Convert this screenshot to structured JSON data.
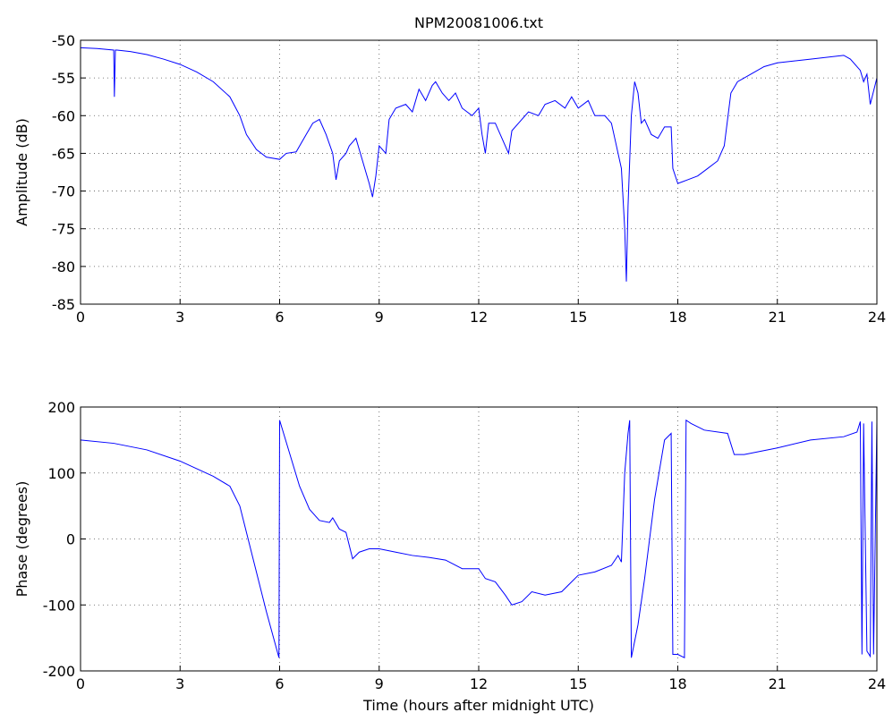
{
  "chart_data": [
    {
      "type": "line",
      "title": "NPM20081006.txt",
      "y_label": "Amplitude (dB)",
      "color": "#0000ff",
      "grid": true,
      "xlim": [
        0,
        24
      ],
      "xticks": [
        0,
        3,
        6,
        9,
        12,
        15,
        18,
        21,
        24
      ],
      "ylim": [
        -85,
        -50
      ],
      "yticks": [
        -85,
        -80,
        -75,
        -70,
        -65,
        -60,
        -55,
        -50
      ],
      "x": [
        0,
        0.5,
        1.0,
        1.02,
        1.05,
        1.1,
        1.5,
        2,
        2.5,
        3,
        3.5,
        4,
        4.5,
        4.8,
        5.0,
        5.3,
        5.6,
        6,
        6.2,
        6.5,
        6.8,
        7.0,
        7.2,
        7.4,
        7.6,
        7.7,
        7.8,
        8.0,
        8.1,
        8.3,
        8.5,
        8.7,
        8.8,
        8.9,
        9.0,
        9.2,
        9.3,
        9.5,
        9.8,
        10.0,
        10.2,
        10.4,
        10.6,
        10.7,
        10.9,
        11.1,
        11.3,
        11.5,
        11.8,
        12.0,
        12.1,
        12.2,
        12.3,
        12.5,
        12.7,
        12.9,
        13.0,
        13.2,
        13.5,
        13.8,
        14.0,
        14.3,
        14.6,
        14.8,
        15.0,
        15.3,
        15.5,
        15.8,
        16.0,
        16.1,
        16.3,
        16.4,
        16.45,
        16.5,
        16.6,
        16.7,
        16.8,
        16.9,
        17.0,
        17.2,
        17.4,
        17.6,
        17.8,
        17.85,
        18.0,
        18.3,
        18.6,
        18.9,
        19.2,
        19.4,
        19.6,
        19.8,
        20.2,
        20.6,
        21,
        22,
        23,
        23.2,
        23.5,
        23.6,
        23.7,
        23.8,
        24
      ],
      "values": [
        -51,
        -51.1,
        -51.3,
        -57.5,
        -51.3,
        -51.3,
        -51.5,
        -51.9,
        -52.5,
        -53.2,
        -54.2,
        -55.5,
        -57.5,
        -60,
        -62.5,
        -64.5,
        -65.5,
        -65.8,
        -65,
        -64.8,
        -62.5,
        -61,
        -60.5,
        -62.5,
        -65,
        -68.5,
        -66,
        -65,
        -64,
        -63,
        -66,
        -69,
        -70.8,
        -68,
        -64,
        -65,
        -60.5,
        -59,
        -58.5,
        -59.5,
        -56.5,
        -58,
        -56,
        -55.5,
        -57,
        -58,
        -57,
        -59,
        -60,
        -59,
        -62.5,
        -65,
        -61,
        -61,
        -63,
        -65,
        -62,
        -61,
        -59.5,
        -60,
        -58.5,
        -58,
        -59,
        -57.5,
        -59,
        -58,
        -60,
        -60,
        -61,
        -63,
        -67,
        -75,
        -82,
        -72,
        -60,
        -55.5,
        -57,
        -61,
        -60.5,
        -62.5,
        -63,
        -61.5,
        -61.5,
        -67,
        -69,
        -68.5,
        -68,
        -67,
        -66,
        -64,
        -57,
        -55.5,
        -54.5,
        -53.5,
        -53,
        -52.5,
        -52,
        -52.5,
        -54,
        -55.5,
        -54.5,
        -58.5,
        -55
      ]
    },
    {
      "type": "line",
      "y_label": "Phase (degrees)",
      "x_label": "Time (hours after midnight UTC)",
      "color": "#0000ff",
      "grid": true,
      "xlim": [
        0,
        24
      ],
      "xticks": [
        0,
        3,
        6,
        9,
        12,
        15,
        18,
        21,
        24
      ],
      "ylim": [
        -200,
        200
      ],
      "yticks": [
        -200,
        -100,
        0,
        100,
        200
      ],
      "x": [
        0,
        1,
        2,
        3,
        4,
        4.5,
        4.8,
        5.0,
        5.3,
        5.6,
        5.98,
        6.0,
        6.3,
        6.6,
        6.9,
        7.2,
        7.5,
        7.6,
        7.8,
        8.0,
        8.2,
        8.4,
        8.7,
        9.0,
        9.5,
        10,
        10.5,
        11,
        11.5,
        12.0,
        12.2,
        12.5,
        12.8,
        13.0,
        13.3,
        13.6,
        14.0,
        14.5,
        15.0,
        15.5,
        16,
        16.2,
        16.3,
        16.4,
        16.5,
        16.55,
        16.6,
        16.8,
        17.0,
        17.3,
        17.6,
        17.8,
        17.85,
        18.0,
        18.2,
        18.25,
        18.4,
        18.8,
        19.5,
        19.7,
        20,
        21,
        22,
        23,
        23.4,
        23.5,
        23.55,
        23.6,
        23.7,
        23.8,
        23.85,
        23.9,
        24
      ],
      "values": [
        150,
        145,
        135,
        118,
        95,
        80,
        50,
        10,
        -50,
        -110,
        -180,
        180,
        130,
        80,
        45,
        28,
        25,
        32,
        15,
        10,
        -30,
        -20,
        -15,
        -15,
        -20,
        -25,
        -28,
        -32,
        -45,
        -45,
        -60,
        -65,
        -85,
        -100,
        -95,
        -80,
        -85,
        -80,
        -55,
        -50,
        -40,
        -25,
        -35,
        100,
        160,
        180,
        -180,
        -130,
        -60,
        60,
        150,
        160,
        -175,
        -175,
        -180,
        180,
        175,
        165,
        160,
        128,
        128,
        138,
        150,
        155,
        162,
        178,
        -175,
        175,
        -170,
        -178,
        178,
        -175,
        178
      ]
    }
  ]
}
